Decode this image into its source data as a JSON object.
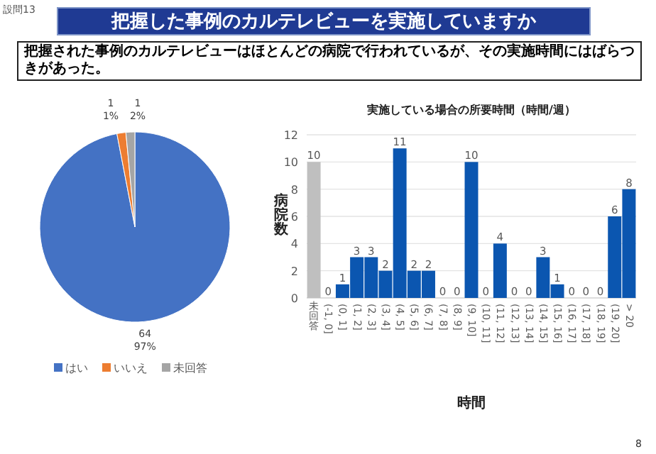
{
  "chart_data": [
    {
      "type": "pie",
      "title": "把握した事例のカルテレビューを実施していますか",
      "subtitle": "把握された事例のカルテレビューはほとんどの病院で行われているが、その実施時間にはばらつきがあった。",
      "annotations": [
        "設問13",
        "8"
      ],
      "categories": [
        "はい",
        "いいえ",
        "未回答"
      ],
      "values": [
        64,
        1,
        1
      ],
      "colors": [
        "#4472c4",
        "#ed7d31",
        "#a5a5a5"
      ],
      "value_labels": [
        "64\n97%",
        "1\n1%",
        "1\n2%"
      ],
      "legend": "bottom"
    },
    {
      "type": "bar",
      "title": "実施している場合の所要時間（時間/週）",
      "xlabel": "時間",
      "ylabel": "病院数",
      "categories": [
        "未回答",
        "(-1, 0]",
        "(0, 1]",
        "(1, 2]",
        "(2, 3]",
        "(3, 4]",
        "(4, 5]",
        "(5, 6]",
        "(6, 7]",
        "(7, 8]",
        "(8, 9]",
        "(9, 10]",
        "(10, 11]",
        "(11, 12]",
        "(12, 13]",
        "(13, 14]",
        "(14, 15]",
        "(15, 16]",
        "(16, 17]",
        "(17, 18]",
        "(18, 19]",
        "(19, 20]",
        "> 20"
      ],
      "values": [
        10,
        0,
        1,
        3,
        3,
        2,
        11,
        2,
        2,
        0,
        0,
        10,
        0,
        4,
        0,
        0,
        3,
        1,
        0,
        0,
        0,
        6,
        8
      ],
      "colors": [
        "#bfbfbf",
        "#0b56b0",
        "#0b56b0",
        "#0b56b0",
        "#0b56b0",
        "#0b56b0",
        "#0b56b0",
        "#0b56b0",
        "#0b56b0",
        "#0b56b0",
        "#0b56b0",
        "#0b56b0",
        "#0b56b0",
        "#0b56b0",
        "#0b56b0",
        "#0b56b0",
        "#0b56b0",
        "#0b56b0",
        "#0b56b0",
        "#0b56b0",
        "#0b56b0",
        "#0b56b0",
        "#0b56b0"
      ],
      "ylim": [
        0,
        12
      ],
      "yticks": [
        0,
        2,
        4,
        6,
        8,
        10,
        12
      ],
      "grid": "y",
      "data_labels": true
    }
  ]
}
